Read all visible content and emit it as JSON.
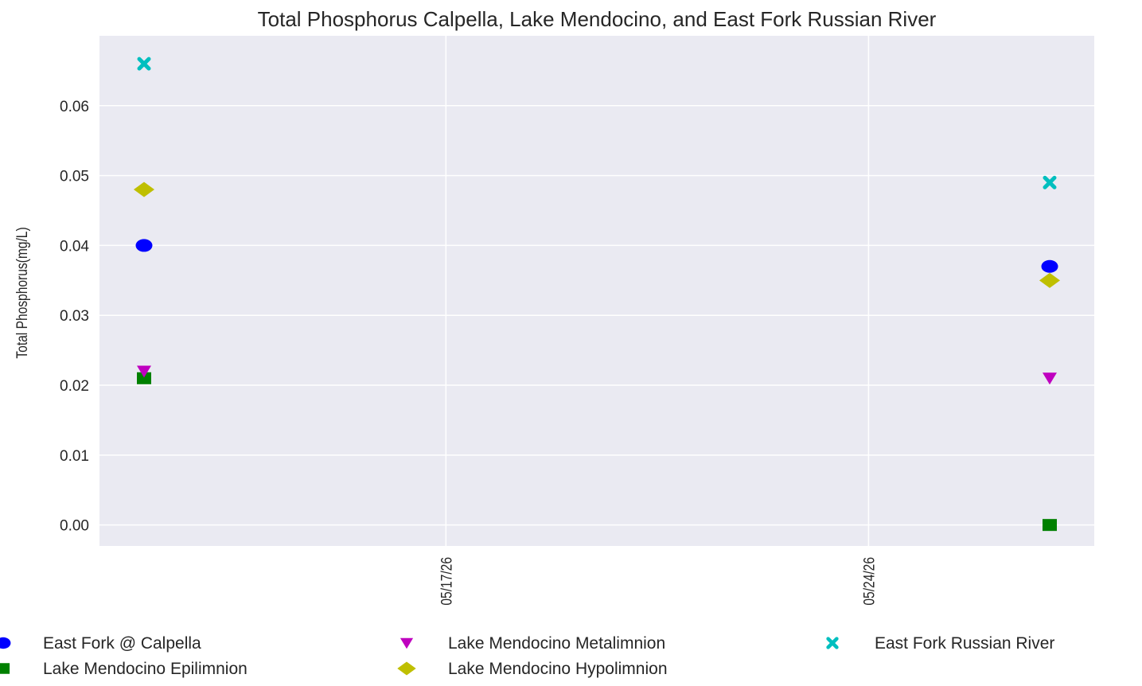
{
  "chart_data": {
    "type": "scatter",
    "title": "Total Phosphorus Calpella, Lake Mendocino, and East Fork Russian River",
    "xlabel": "",
    "ylabel": "Total Phosphorus(mg/L)",
    "x_ticks": [
      "05/17/26",
      "05/24/26"
    ],
    "x_tick_values": [
      "2026-05-17",
      "2026-05-24"
    ],
    "xlim": [
      "2026-05-12",
      "2026-05-27"
    ],
    "ylim": [
      -0.003,
      0.07
    ],
    "y_ticks": [
      "0.00",
      "0.01",
      "0.02",
      "0.03",
      "0.04",
      "0.05",
      "0.06"
    ],
    "y_tick_values": [
      0,
      0.01,
      0.02,
      0.03,
      0.04,
      0.05,
      0.06
    ],
    "grid": true,
    "legend_position": "bottom",
    "series": [
      {
        "name": "East Fork @ Calpella",
        "marker": "circle",
        "color": "#0000ff",
        "x": [
          "2026-05-12",
          "2026-05-27"
        ],
        "y": [
          0.04,
          0.037
        ]
      },
      {
        "name": "Lake Mendocino Epilimnion",
        "marker": "square",
        "color": "#008000",
        "x": [
          "2026-05-12",
          "2026-05-27"
        ],
        "y": [
          0.021,
          0.0
        ]
      },
      {
        "name": "Lake Mendocino Metalimnion",
        "marker": "triangle-down",
        "color": "#bf00bf",
        "x": [
          "2026-05-12",
          "2026-05-27"
        ],
        "y": [
          0.022,
          0.021
        ]
      },
      {
        "name": "Lake Mendocino Hypolimnion",
        "marker": "diamond",
        "color": "#bfbf00",
        "x": [
          "2026-05-12",
          "2026-05-27"
        ],
        "y": [
          0.048,
          0.035
        ]
      },
      {
        "name": "East Fork Russian River",
        "marker": "x",
        "color": "#00bfbf",
        "x": [
          "2026-05-12",
          "2026-05-27"
        ],
        "y": [
          0.066,
          0.049
        ]
      }
    ]
  }
}
